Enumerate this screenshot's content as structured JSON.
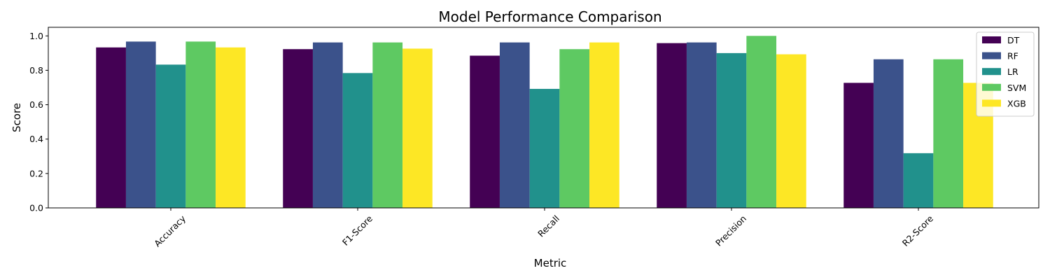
{
  "chart_data": {
    "type": "bar",
    "title": "Model Performance Comparison",
    "xlabel": "Metric",
    "ylabel": "Score",
    "categories": [
      "Accuracy",
      "F1-Score",
      "Recall",
      "Precision",
      "R2-Score"
    ],
    "series": [
      {
        "name": "DT",
        "color": "#440154",
        "values": [
          0.933,
          0.923,
          0.885,
          0.958,
          0.727
        ]
      },
      {
        "name": "RF",
        "color": "#3b528b",
        "values": [
          0.967,
          0.962,
          0.962,
          0.962,
          0.864
        ]
      },
      {
        "name": "LR",
        "color": "#21918c",
        "values": [
          0.833,
          0.784,
          0.692,
          0.9,
          0.318
        ]
      },
      {
        "name": "SVM",
        "color": "#5ec962",
        "values": [
          0.967,
          0.962,
          0.923,
          1.0,
          0.864
        ]
      },
      {
        "name": "XGB",
        "color": "#fde725",
        "values": [
          0.933,
          0.926,
          0.962,
          0.893,
          0.727
        ]
      }
    ],
    "ylim": [
      0,
      1.05
    ],
    "yticks": [
      "0.0",
      "0.2",
      "0.4",
      "0.6",
      "0.8",
      "1.0"
    ],
    "grid": false,
    "legend_position": "top-right",
    "xtick_rotation": 45
  }
}
